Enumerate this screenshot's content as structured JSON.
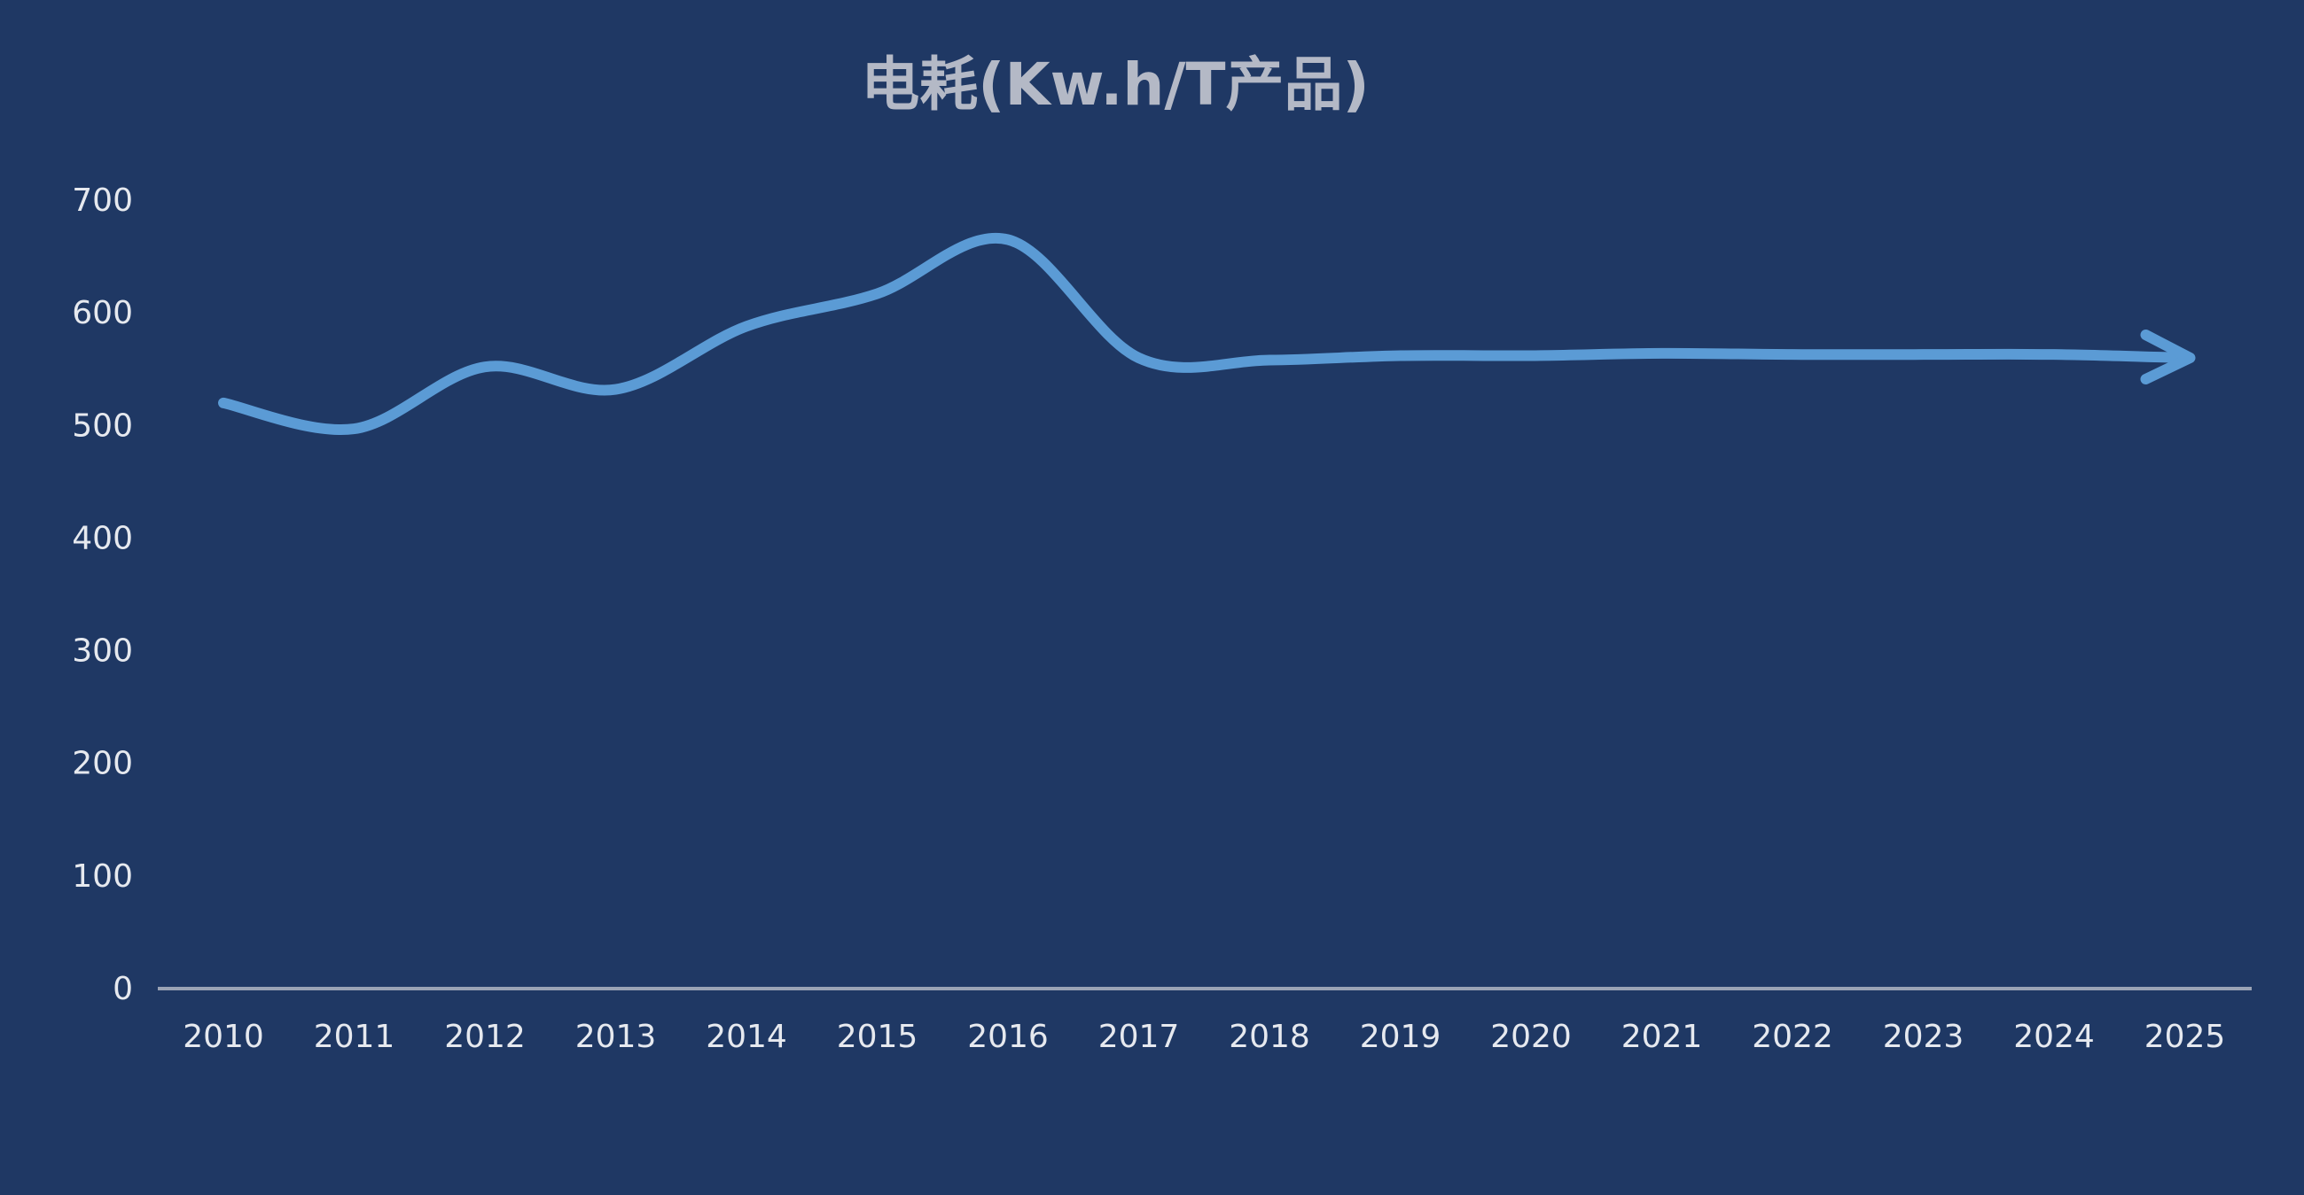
{
  "chart_data": {
    "type": "line",
    "title": "电耗(Kw.h/T产品)",
    "xlabel": "",
    "ylabel": "",
    "x": [
      "2010",
      "2011",
      "2012",
      "2013",
      "2014",
      "2015",
      "2016",
      "2017",
      "2018",
      "2019",
      "2020",
      "2021",
      "2022",
      "2023",
      "2024",
      "2025"
    ],
    "series": [
      {
        "values": [
          520,
          497,
          552,
          532,
          588,
          617,
          665,
          560,
          558,
          562,
          562,
          564,
          563,
          563,
          563,
          560
        ]
      }
    ],
    "ylim": [
      0,
      700
    ],
    "yticks": [
      0,
      100,
      200,
      300,
      400,
      500,
      600,
      700
    ],
    "grid": false,
    "legend": "none",
    "end_marker": "arrow",
    "colors": {
      "background": "#1f3864",
      "line": "#5b9bd5",
      "title": "#b4b9c6",
      "tick_labels": "#e6e9ef",
      "axis": "#9aa3b5"
    }
  }
}
